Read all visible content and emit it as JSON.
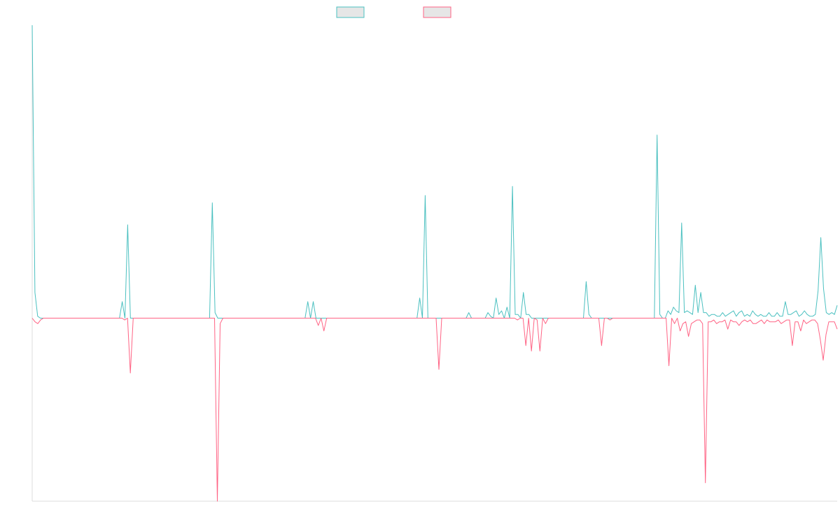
{
  "chart_data": {
    "type": "line",
    "title": "",
    "xlabel": "",
    "ylabel": "",
    "grid": false,
    "legend_position": "top-center",
    "ylim": [
      -100,
      160
    ],
    "series": [
      {
        "color": "#4bc0c0",
        "swatch_fill": "#e6e6e6",
        "values": [
          160,
          14,
          1,
          0,
          0,
          0,
          0,
          0,
          0,
          0,
          0,
          0,
          0,
          0,
          0,
          0,
          0,
          0,
          0,
          0,
          0,
          0,
          0,
          0,
          0,
          0,
          0,
          0,
          0,
          0,
          0,
          0,
          0,
          9,
          0,
          51,
          0,
          0,
          0,
          0,
          0,
          0,
          0,
          0,
          0,
          0,
          0,
          0,
          0,
          0,
          0,
          0,
          0,
          0,
          0,
          0,
          0,
          0,
          0,
          0,
          0,
          0,
          0,
          0,
          0,
          0,
          63,
          3,
          0,
          0,
          0,
          0,
          0,
          0,
          0,
          0,
          0,
          0,
          0,
          0,
          0,
          0,
          0,
          0,
          0,
          0,
          0,
          0,
          0,
          0,
          0,
          0,
          0,
          0,
          0,
          0,
          0,
          0,
          0,
          0,
          0,
          9,
          0,
          9,
          0,
          0,
          0,
          0,
          0,
          0,
          0,
          0,
          0,
          0,
          0,
          0,
          0,
          0,
          0,
          0,
          0,
          0,
          0,
          0,
          0,
          0,
          0,
          0,
          0,
          0,
          0,
          0,
          0,
          0,
          0,
          0,
          0,
          0,
          0,
          0,
          0,
          0,
          11,
          0,
          67,
          0,
          0,
          0,
          0,
          0,
          0,
          0,
          0,
          0,
          0,
          0,
          0,
          0,
          0,
          0,
          3,
          0,
          0,
          0,
          0,
          0,
          0,
          3,
          1,
          0,
          11,
          2,
          4,
          0,
          6,
          0,
          72,
          2,
          2,
          0,
          14,
          2,
          2,
          0,
          0,
          0,
          0,
          0,
          0,
          0,
          0,
          0,
          0,
          0,
          0,
          0,
          0,
          0,
          0,
          0,
          0,
          0,
          0,
          20,
          2,
          0,
          0,
          0,
          0,
          0,
          0,
          0,
          0,
          0,
          0,
          0,
          0,
          0,
          0,
          0,
          0,
          0,
          0,
          0,
          0,
          0,
          0,
          0,
          0,
          100,
          2,
          0,
          0,
          4,
          2,
          6,
          4,
          3,
          52,
          3,
          4,
          3,
          2,
          18,
          3,
          14,
          3,
          3,
          1,
          2,
          2,
          1,
          1,
          3,
          1,
          2,
          3,
          4,
          1,
          3,
          4,
          1,
          2,
          1,
          4,
          2,
          1,
          2,
          1,
          1,
          3,
          1,
          1,
          3,
          1,
          1,
          9,
          2,
          2,
          3,
          4,
          1,
          2,
          4,
          2,
          1,
          1,
          2,
          15,
          44,
          16,
          3,
          2,
          3,
          2,
          7
        ]
      },
      {
        "color": "#ff6384",
        "swatch_fill": "#e6e6e6",
        "values": [
          0,
          -2,
          -3,
          -1,
          0,
          0,
          0,
          0,
          0,
          0,
          0,
          0,
          0,
          0,
          0,
          0,
          0,
          0,
          0,
          0,
          0,
          0,
          0,
          0,
          0,
          0,
          0,
          0,
          0,
          0,
          0,
          0,
          0,
          -1,
          0,
          -30,
          0,
          0,
          0,
          0,
          0,
          0,
          0,
          0,
          0,
          0,
          0,
          0,
          0,
          0,
          0,
          0,
          0,
          0,
          0,
          0,
          0,
          0,
          0,
          0,
          0,
          0,
          0,
          0,
          0,
          0,
          -100,
          -3,
          0,
          0,
          0,
          0,
          0,
          0,
          0,
          0,
          0,
          0,
          0,
          0,
          0,
          0,
          0,
          0,
          0,
          0,
          0,
          0,
          0,
          0,
          0,
          0,
          0,
          0,
          0,
          0,
          0,
          0,
          0,
          0,
          0,
          0,
          -4,
          0,
          -7,
          0,
          0,
          0,
          0,
          0,
          0,
          0,
          0,
          0,
          0,
          0,
          0,
          0,
          0,
          0,
          0,
          0,
          0,
          0,
          0,
          0,
          0,
          0,
          0,
          0,
          0,
          0,
          0,
          0,
          0,
          0,
          0,
          0,
          0,
          0,
          0,
          0,
          0,
          0,
          0,
          -28,
          0,
          0,
          0,
          0,
          0,
          0,
          0,
          0,
          0,
          0,
          0,
          0,
          0,
          0,
          0,
          0,
          0,
          0,
          0,
          0,
          0,
          0,
          0,
          0,
          0,
          0,
          0,
          -1,
          0,
          0,
          -15,
          0,
          -18,
          0,
          -1,
          -18,
          0,
          -3,
          0,
          0,
          0,
          0,
          0,
          0,
          0,
          0,
          0,
          0,
          0,
          0,
          0,
          0,
          0,
          0,
          0,
          0,
          0,
          -15,
          0,
          0,
          -1,
          0,
          0,
          0,
          0,
          0,
          0,
          0,
          0,
          0,
          0,
          0,
          0,
          0,
          0,
          0,
          0,
          0,
          0,
          0,
          0,
          -26,
          0,
          -3,
          0,
          -7,
          -3,
          -2,
          -10,
          -3,
          -2,
          -1,
          -1,
          -3,
          -90,
          -2,
          -2,
          -1,
          -3,
          -2,
          -2,
          -1,
          -6,
          -1,
          -2,
          -2,
          -4,
          -2,
          -1,
          -2,
          -1,
          -3,
          -3,
          -2,
          -1,
          -3,
          -1,
          -2,
          -2,
          -2,
          -1,
          -3,
          -2,
          -1,
          -1,
          -15,
          -2,
          -2,
          -7,
          -1,
          -3,
          -2,
          -1,
          -1,
          -3,
          -12,
          -23,
          -9,
          -2,
          -2,
          -2,
          -6
        ]
      }
    ]
  }
}
